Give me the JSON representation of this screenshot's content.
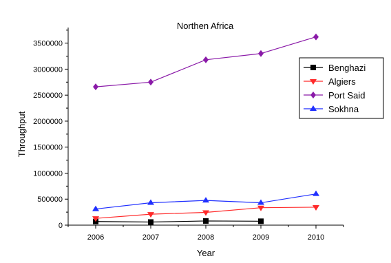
{
  "chart_data": {
    "type": "line",
    "title": "Northen Africa",
    "xlabel": "Year",
    "ylabel": "Throughput",
    "x": [
      2006,
      2007,
      2008,
      2009,
      2010
    ],
    "xlim": [
      2005.5,
      2010.5
    ],
    "ylim": [
      0,
      3800000
    ],
    "yticks": [
      0,
      500000,
      1000000,
      1500000,
      2000000,
      2500000,
      3000000,
      3500000
    ],
    "ytick_labels": [
      "0",
      "500000",
      "1000000",
      "1500000",
      "2000000",
      "2500000",
      "3000000",
      "3500000"
    ],
    "xtick_labels": [
      "2006",
      "2007",
      "2008",
      "2009",
      "2010"
    ],
    "grid": false,
    "legend_position": "top-right",
    "series": [
      {
        "name": "Benghazi",
        "color": "#000000",
        "marker": "square",
        "values": [
          70000,
          60000,
          80000,
          75000,
          null
        ]
      },
      {
        "name": "Algiers",
        "color": "#ff2a2a",
        "marker": "triangle-down",
        "values": [
          130000,
          210000,
          245000,
          335000,
          345000
        ]
      },
      {
        "name": "Port Said",
        "color": "#8a1aa8",
        "marker": "diamond",
        "values": [
          2660000,
          2750000,
          3180000,
          3300000,
          3620000
        ]
      },
      {
        "name": "Sokhna",
        "color": "#1f2fff",
        "marker": "triangle-up",
        "values": [
          310000,
          430000,
          475000,
          430000,
          600000
        ]
      }
    ]
  }
}
